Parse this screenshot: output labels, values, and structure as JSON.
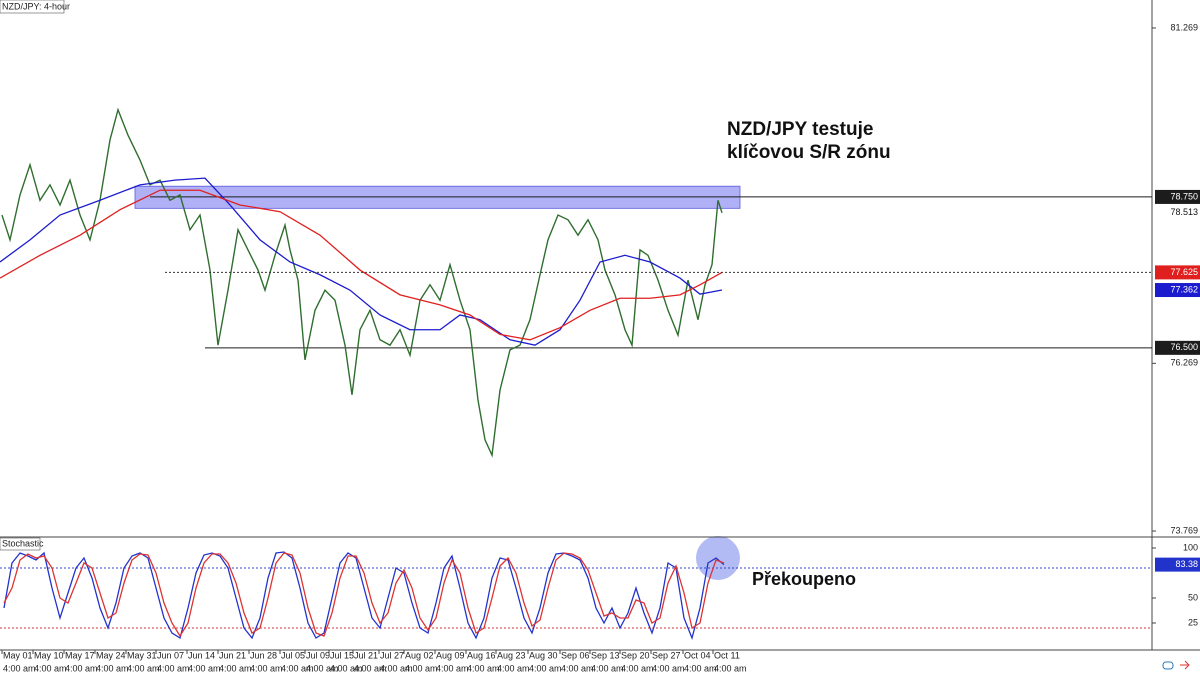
{
  "chart_data": [
    {
      "type": "line",
      "title": "NZD/JPY: 4-hour",
      "annotation": [
        "NZD/JPY testuje",
        "klíčovou S/R zónu"
      ],
      "xlim": [
        0,
        1152
      ],
      "ylim": [
        73.68,
        81.686
      ],
      "yticks": [
        81.269,
        76.269,
        73.769
      ],
      "zone": [
        78.58,
        78.91
      ],
      "zone_color": "#7b7bf0",
      "levels": [
        {
          "value": 78.75,
          "label": "78.750",
          "color": "#1c1c1c"
        },
        {
          "value": 76.5,
          "label": "76.500",
          "color": "#1c1c1c"
        }
      ],
      "series": [
        {
          "color": "#2f6e2f",
          "x": [
            2,
            10,
            20,
            30,
            40,
            50,
            60,
            70,
            80,
            90,
            100,
            110,
            118,
            128,
            140,
            150,
            160,
            170,
            180,
            190,
            200,
            210,
            218,
            228,
            238,
            248,
            258,
            265,
            275,
            285,
            290,
            298,
            305,
            315,
            325,
            335,
            345,
            352,
            360,
            370,
            380,
            390,
            400,
            410,
            420,
            430,
            440,
            450,
            460,
            470,
            478,
            485,
            492,
            500,
            510,
            520,
            530,
            540,
            548,
            558,
            568,
            578,
            588,
            598,
            605,
            615,
            625,
            632,
            640,
            648,
            658,
            668,
            678,
            688,
            698,
            705,
            712,
            718,
            722
          ],
          "values": [
            78.48,
            78.11,
            78.78,
            79.23,
            78.7,
            78.93,
            78.63,
            79.0,
            78.48,
            78.11,
            78.7,
            79.6,
            80.05,
            79.67,
            79.3,
            78.93,
            79.0,
            78.7,
            78.78,
            78.26,
            78.48,
            77.66,
            76.54,
            77.36,
            78.26,
            77.96,
            77.66,
            77.36,
            77.88,
            78.33,
            77.96,
            77.51,
            76.32,
            77.06,
            77.36,
            77.21,
            76.54,
            75.8,
            76.77,
            77.06,
            76.62,
            76.54,
            76.77,
            76.39,
            77.21,
            77.44,
            77.21,
            77.74,
            77.21,
            76.77,
            75.72,
            75.13,
            74.9,
            75.87,
            76.47,
            76.54,
            76.92,
            77.59,
            78.11,
            78.48,
            78.41,
            78.18,
            78.41,
            78.11,
            77.66,
            77.29,
            76.77,
            76.54,
            77.96,
            77.88,
            77.51,
            77.06,
            76.69,
            77.51,
            76.92,
            77.44,
            77.74,
            78.7,
            78.513
          ]
        },
        {
          "color": "#1c1ccf",
          "x": [
            0,
            30,
            60,
            100,
            140,
            175,
            205,
            230,
            260,
            290,
            320,
            350,
            380,
            410,
            440,
            460,
            480,
            510,
            535,
            560,
            580,
            600,
            625,
            650,
            680,
            700,
            722
          ],
          "values": [
            77.78,
            78.11,
            78.48,
            78.7,
            78.93,
            79.0,
            79.03,
            78.63,
            78.11,
            77.78,
            77.59,
            77.36,
            76.99,
            76.77,
            76.77,
            76.99,
            76.92,
            76.62,
            76.54,
            76.77,
            77.21,
            77.78,
            77.88,
            77.78,
            77.54,
            77.3,
            77.362
          ]
        },
        {
          "color": "#e0201e",
          "x": [
            0,
            40,
            80,
            120,
            160,
            200,
            240,
            280,
            320,
            360,
            400,
            440,
            470,
            500,
            530,
            560,
            590,
            620,
            650,
            680,
            700,
            722
          ],
          "values": [
            77.54,
            77.88,
            78.18,
            78.56,
            78.85,
            78.85,
            78.63,
            78.53,
            78.18,
            77.66,
            77.29,
            77.14,
            76.99,
            76.7,
            76.62,
            76.8,
            77.06,
            77.24,
            77.24,
            77.29,
            77.44,
            77.625
          ]
        }
      ]
    },
    {
      "type": "line",
      "title": "Stochastic",
      "annotation": "Překoupeno",
      "xlim": [
        0,
        1152
      ],
      "ylim": [
        -2,
        111
      ],
      "yticks": [
        100,
        50,
        25
      ],
      "levels": [
        {
          "value": 80,
          "color": "#3344cc"
        },
        {
          "value": 20,
          "color": "#dd3333"
        }
      ],
      "x": [
        4,
        12,
        20,
        28,
        36,
        44,
        52,
        60,
        68,
        76,
        84,
        92,
        100,
        108,
        116,
        124,
        132,
        140,
        148,
        156,
        164,
        172,
        180,
        188,
        196,
        204,
        212,
        220,
        228,
        236,
        244,
        252,
        260,
        268,
        276,
        284,
        292,
        300,
        308,
        316,
        324,
        332,
        340,
        348,
        356,
        364,
        372,
        380,
        388,
        396,
        404,
        412,
        420,
        428,
        436,
        444,
        452,
        460,
        468,
        476,
        484,
        492,
        500,
        508,
        516,
        524,
        532,
        540,
        548,
        556,
        564,
        572,
        580,
        588,
        596,
        604,
        612,
        620,
        628,
        636,
        644,
        652,
        660,
        668,
        676,
        684,
        692,
        700,
        708,
        716,
        724
      ],
      "series": [
        {
          "color": "#2233cc",
          "values": [
            40,
            85,
            95,
            92,
            88,
            95,
            60,
            30,
            55,
            80,
            90,
            70,
            40,
            20,
            45,
            80,
            92,
            95,
            90,
            60,
            30,
            15,
            10,
            40,
            75,
            93,
            95,
            92,
            80,
            50,
            20,
            10,
            30,
            70,
            95,
            96,
            90,
            60,
            25,
            10,
            15,
            50,
            85,
            95,
            90,
            60,
            30,
            20,
            50,
            80,
            75,
            45,
            20,
            15,
            45,
            80,
            92,
            60,
            25,
            10,
            30,
            70,
            90,
            88,
            60,
            30,
            15,
            40,
            75,
            94,
            95,
            92,
            88,
            70,
            40,
            25,
            40,
            20,
            35,
            60,
            35,
            15,
            40,
            85,
            80,
            30,
            10,
            40,
            85,
            90,
            83.38
          ]
        },
        {
          "color": "#dd3333",
          "values": [
            45,
            60,
            88,
            94,
            90,
            92,
            80,
            50,
            45,
            65,
            85,
            80,
            55,
            30,
            35,
            65,
            88,
            94,
            93,
            75,
            45,
            25,
            12,
            25,
            60,
            85,
            94,
            94,
            85,
            65,
            35,
            15,
            20,
            50,
            85,
            95,
            93,
            75,
            40,
            15,
            12,
            35,
            70,
            92,
            92,
            75,
            45,
            25,
            35,
            65,
            78,
            60,
            30,
            18,
            30,
            65,
            88,
            75,
            40,
            15,
            20,
            50,
            82,
            90,
            75,
            45,
            22,
            28,
            60,
            88,
            95,
            94,
            90,
            78,
            55,
            32,
            35,
            30,
            30,
            48,
            45,
            25,
            30,
            65,
            82,
            55,
            20,
            25,
            65,
            88,
            85
          ]
        }
      ],
      "xticks": [
        {
          "value": 2,
          "label": "May 01",
          "sublabel": "4:00 am"
        },
        {
          "value": 33,
          "label": "May 10",
          "sublabel": "4:00 am"
        },
        {
          "value": 64,
          "label": "May 17",
          "sublabel": "4:00 am"
        },
        {
          "value": 95,
          "label": "May 24",
          "sublabel": "4:00 am"
        },
        {
          "value": 126,
          "label": "May 31",
          "sublabel": "4:00 am"
        },
        {
          "value": 156,
          "label": "Jun 07",
          "sublabel": "4:00 am"
        },
        {
          "value": 187,
          "label": "Jun 14",
          "sublabel": "4:00 am"
        },
        {
          "value": 218,
          "label": "Jun 21",
          "sublabel": "4:00 am"
        },
        {
          "value": 249,
          "label": "Jun 28",
          "sublabel": "4:00 am"
        },
        {
          "value": 280,
          "label": "Jul 05",
          "sublabel": "4:00 am"
        },
        {
          "value": 305,
          "label": "Jul 09",
          "sublabel": "4:00 am"
        },
        {
          "value": 329,
          "label": "Jul 15",
          "sublabel": "4:00 am"
        },
        {
          "value": 353,
          "label": "Jul 21",
          "sublabel": "4:00 am"
        },
        {
          "value": 379,
          "label": "Jul 27",
          "sublabel": "4:00 am"
        },
        {
          "value": 404,
          "label": "Aug 02",
          "sublabel": "4:00 am"
        },
        {
          "value": 435,
          "label": "Aug 09",
          "sublabel": "4:00 am"
        },
        {
          "value": 466,
          "label": "Aug 16",
          "sublabel": "4:00 am"
        },
        {
          "value": 496,
          "label": "Aug 23",
          "sublabel": "4:00 am"
        },
        {
          "value": 528,
          "label": "Aug 30",
          "sublabel": "4:00 am"
        },
        {
          "value": 560,
          "label": "Sep 06",
          "sublabel": "4:00 am"
        },
        {
          "value": 590,
          "label": "Sep 13",
          "sublabel": "4:00 am"
        },
        {
          "value": 620,
          "label": "Sep 20",
          "sublabel": "4:00 am"
        },
        {
          "value": 651,
          "label": "Sep 27",
          "sublabel": "4:00 am"
        },
        {
          "value": 683,
          "label": "Oct 04",
          "sublabel": "4:00 am"
        },
        {
          "value": 713,
          "label": "Oct 11",
          "sublabel": "4:00 am"
        }
      ]
    }
  ]
}
